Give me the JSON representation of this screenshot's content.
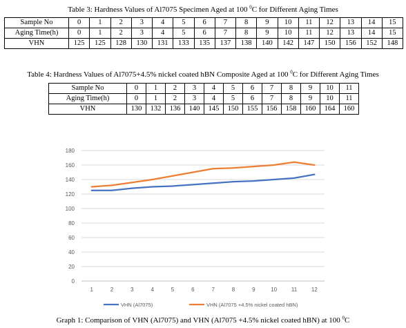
{
  "table3": {
    "caption_pre": "Table 3:  Hardness Values of Al7075 Specimen Aged at 100 ",
    "caption_sup": "0",
    "caption_post": "C for Different Aging Times",
    "rows": [
      {
        "label": "Sample No",
        "cells": [
          "0",
          "1",
          "2",
          "3",
          "4",
          "5",
          "6",
          "7",
          "8",
          "9",
          "10",
          "11",
          "12",
          "13",
          "14",
          "15"
        ]
      },
      {
        "label": "Aging Time(h)",
        "cells": [
          "0",
          "1",
          "2",
          "3",
          "4",
          "5",
          "6",
          "7",
          "8",
          "9",
          "10",
          "11",
          "12",
          "13",
          "14",
          "15"
        ]
      },
      {
        "label": "VHN",
        "cells": [
          "125",
          "125",
          "128",
          "130",
          "131",
          "133",
          "135",
          "137",
          "138",
          "140",
          "142",
          "147",
          "150",
          "156",
          "152",
          "148"
        ]
      }
    ]
  },
  "table4": {
    "caption_pre": "Table 4: Hardness Values of Al7075+4.5% nickel coated hBN Composite Aged at 100 ",
    "caption_sup": "0",
    "caption_post": "C for Different Aging Times",
    "rows": [
      {
        "label": "Sample No",
        "cells": [
          "0",
          "1",
          "2",
          "3",
          "4",
          "5",
          "6",
          "7",
          "8",
          "9",
          "10",
          "11"
        ]
      },
      {
        "label": "Aging Time(h)",
        "cells": [
          "0",
          "1",
          "2",
          "3",
          "4",
          "5",
          "6",
          "7",
          "8",
          "9",
          "10",
          "11"
        ]
      },
      {
        "label": "VHN",
        "cells": [
          "130",
          "132",
          "136",
          "140",
          "145",
          "150",
          "155",
          "156",
          "158",
          "160",
          "164",
          "160"
        ]
      }
    ]
  },
  "graph_caption": {
    "pre": "Graph 1: Comparison of VHN (Al7075) and VHN (Al7075 +4.5% nickel coated hBN) at 100 ",
    "sup": "0",
    "post": "C"
  },
  "chart_data": {
    "type": "line",
    "categories": [
      "1",
      "2",
      "3",
      "4",
      "5",
      "6",
      "7",
      "8",
      "9",
      "10",
      "11",
      "12"
    ],
    "series": [
      {
        "name": "VHN (Al7075)",
        "color": "#4472c4",
        "values": [
          125,
          125,
          128,
          130,
          131,
          133,
          135,
          137,
          138,
          140,
          142,
          147
        ]
      },
      {
        "name": "VHN (Al7075 +4.5% nickel  coated hBN)",
        "color": "#ed7d31",
        "values": [
          130,
          132,
          136,
          140,
          145,
          150,
          155,
          156,
          158,
          160,
          164,
          160
        ]
      }
    ],
    "ylim": [
      0,
      180
    ],
    "yticks": [
      0,
      20,
      40,
      60,
      80,
      100,
      120,
      140,
      160,
      180
    ],
    "grid": true,
    "legend_position": "bottom"
  }
}
